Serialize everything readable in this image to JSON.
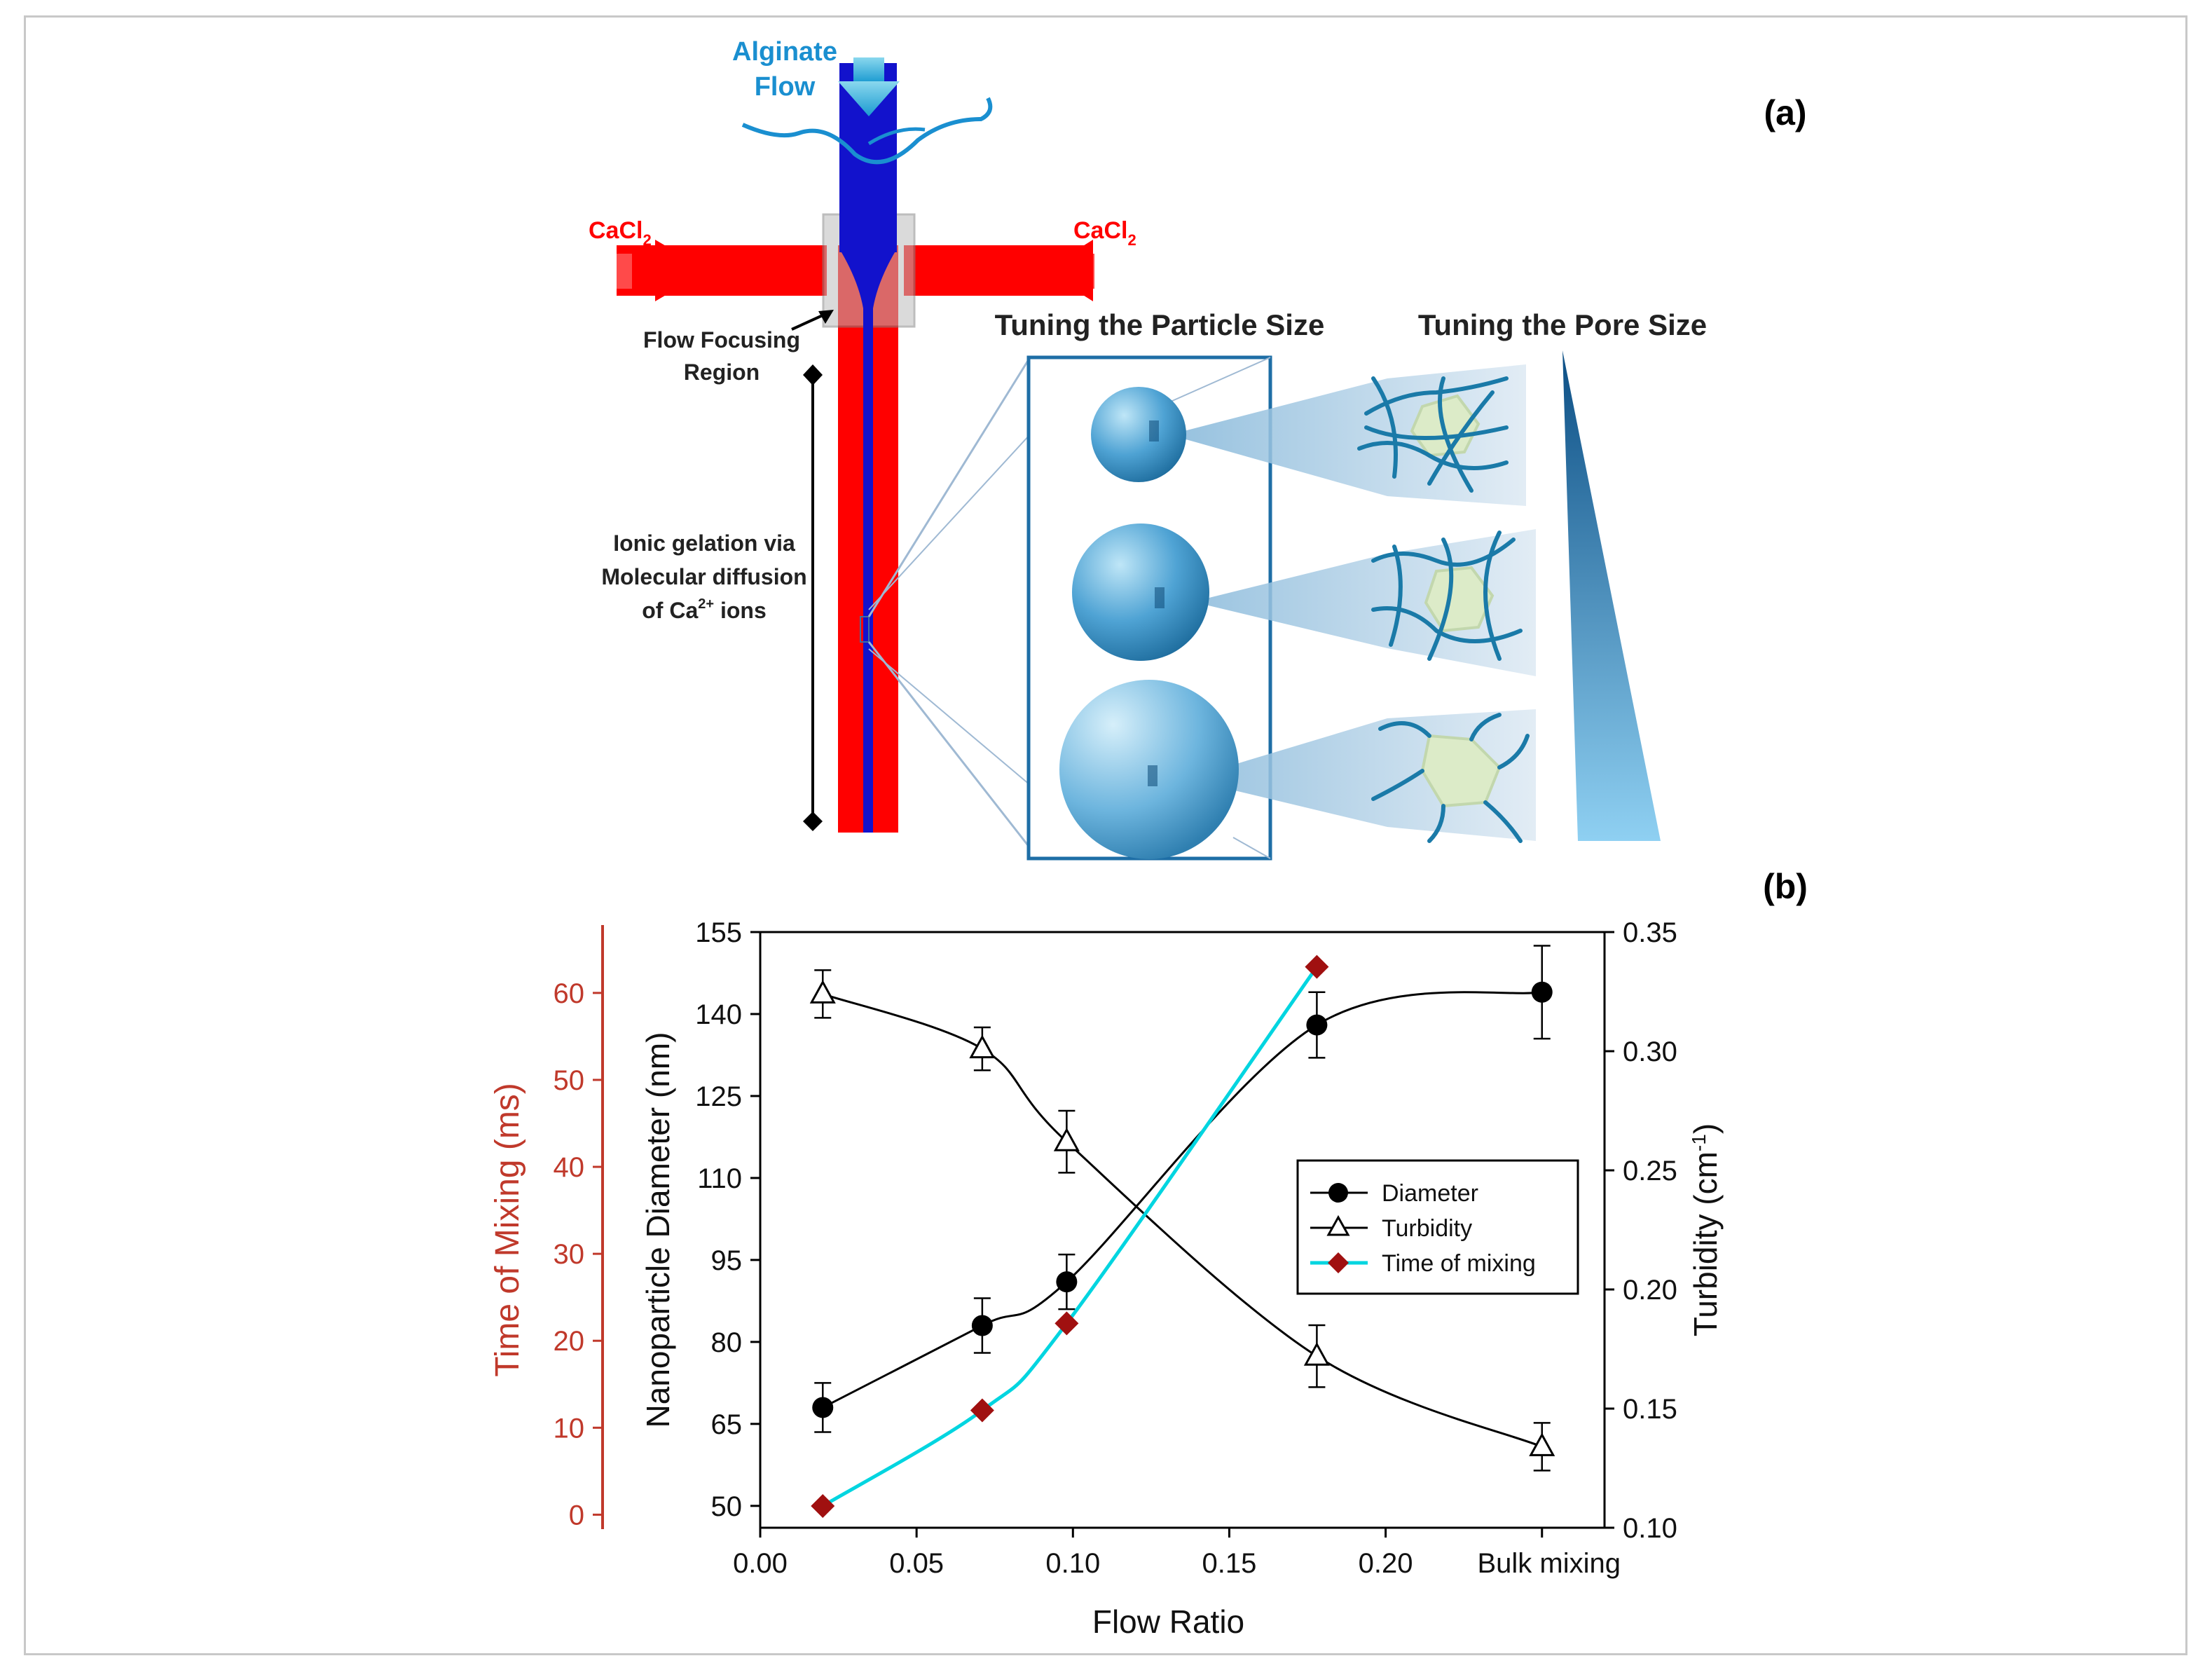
{
  "panel_a": {
    "label": "(a)",
    "alginate_flow": [
      "Alginate",
      "Flow"
    ],
    "cacl2_left": "CaCl",
    "cacl2_right": "CaCl",
    "cacl2_sub": "2",
    "flow_focusing": [
      "Flow Focusing",
      "Region"
    ],
    "ionic_gelation": [
      "Ionic gelation via",
      "Molecular diffusion",
      "of Ca",
      "2+",
      " ions"
    ],
    "tuning_particle": "Tuning the Particle Size",
    "tuning_pore": "Tuning the Pore Size",
    "colors": {
      "alginate_blue": "#1212cc",
      "cacl2_red": "#ff0000",
      "label_blue": "#1a8fd0"
    }
  },
  "panel_b": {
    "label": "(b)"
  },
  "chart_data": {
    "type": "line",
    "xlabel": "Flow Ratio",
    "x_ticks": [
      "0.00",
      "0.05",
      "0.10",
      "0.15",
      "0.20",
      "Bulk mixing"
    ],
    "x_tick_values": [
      0.0,
      0.05,
      0.1,
      0.15,
      0.2,
      0.25
    ],
    "xlim": [
      0.0,
      0.27
    ],
    "y_left": {
      "label": "Nanoparticle Diameter (nm)",
      "lim": [
        46,
        155
      ],
      "ticks": [
        50,
        65,
        80,
        95,
        110,
        125,
        140,
        155
      ]
    },
    "y_mix": {
      "label": "Time of Mixing (ms)",
      "lim": [
        -1.5,
        67
      ],
      "ticks": [
        0,
        10,
        20,
        30,
        40,
        50,
        60
      ],
      "color": "#c0392b"
    },
    "y_right": {
      "label": "Turbidity (cm",
      "label_sup": "-1",
      "label_end": ")",
      "lim": [
        0.1,
        0.35
      ],
      "ticks": [
        "0.10",
        "0.15",
        "0.20",
        "0.25",
        "0.30",
        "0.35"
      ],
      "tick_values": [
        0.1,
        0.15,
        0.2,
        0.25,
        0.3,
        0.35
      ]
    },
    "series": [
      {
        "name": "Diameter",
        "axis": "left",
        "color": "#000000",
        "marker": "circle",
        "x": [
          0.02,
          0.071,
          0.098,
          0.178,
          0.25
        ],
        "y": [
          68,
          83,
          91,
          138,
          144
        ],
        "err": [
          4.5,
          5,
          5,
          6,
          8.5
        ]
      },
      {
        "name": "Turbidity",
        "axis": "right",
        "color": "#000000",
        "marker": "triangle-open",
        "x": [
          0.02,
          0.071,
          0.098,
          0.178,
          0.25
        ],
        "y": [
          0.324,
          0.301,
          0.262,
          0.172,
          0.134
        ],
        "err": [
          0.01,
          0.009,
          0.013,
          0.013,
          0.01
        ]
      },
      {
        "name": "Time of mixing",
        "axis": "mix",
        "color": "#00d5e0",
        "marker": "diamond",
        "marker_color": "#a01010",
        "x": [
          0.02,
          0.071,
          0.098,
          0.178
        ],
        "y": [
          1,
          12,
          22,
          63
        ]
      }
    ],
    "legend": [
      "Diameter",
      "Turbidity",
      "Time of mixing"
    ],
    "legend_position": "right"
  }
}
